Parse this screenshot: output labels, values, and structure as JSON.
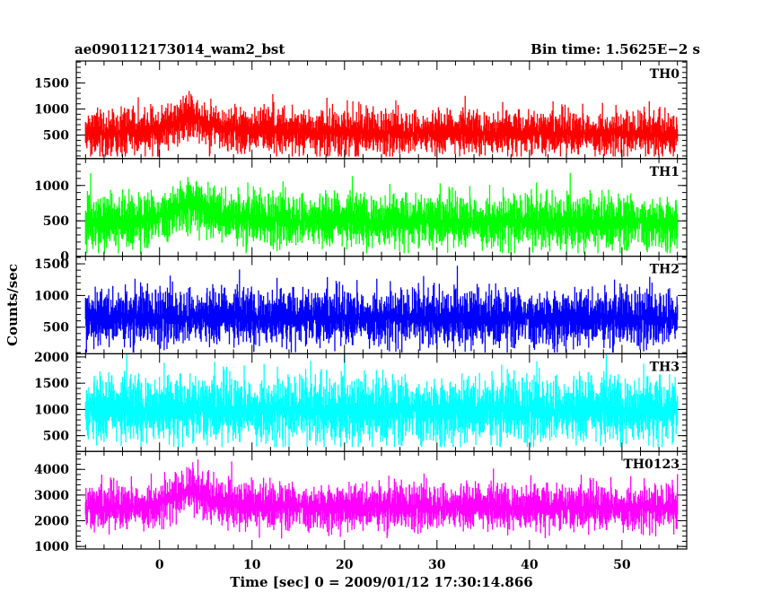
{
  "header": {
    "title": "ae090112173014_wam2_bst",
    "bin_time": "Bin time: 1.5625E−2 s"
  },
  "chart_data": {
    "type": "line",
    "xlabel": "Time [sec] 0 = 2009/01/12 17:30:14.866",
    "ylabel": "Counts/sec",
    "xlim": [
      -9,
      57
    ],
    "x_range": [
      -8,
      56
    ],
    "bin_time": 0.015625,
    "x_ticks": [
      0,
      10,
      20,
      30,
      40,
      50
    ],
    "panels": [
      {
        "name": "TH0",
        "color": "#ff0000",
        "ylim": [
          50,
          1920
        ],
        "y_ticks": [
          500,
          1000,
          1500
        ],
        "profile": [
          {
            "x": -8,
            "mean": 520
          },
          {
            "x": -2,
            "mean": 560
          },
          {
            "x": 0,
            "mean": 600
          },
          {
            "x": 2,
            "mean": 780
          },
          {
            "x": 3.5,
            "mean": 880
          },
          {
            "x": 5,
            "mean": 720
          },
          {
            "x": 8,
            "mean": 600
          },
          {
            "x": 15,
            "mean": 560
          },
          {
            "x": 30,
            "mean": 540
          },
          {
            "x": 45,
            "mean": 540
          },
          {
            "x": 56,
            "mean": 520
          }
        ],
        "noise": 180,
        "max": 1900,
        "min": 90
      },
      {
        "name": "TH1",
        "color": "#00ff00",
        "ylim": [
          0,
          1380
        ],
        "y_ticks": [
          0,
          500,
          1000
        ],
        "profile": [
          {
            "x": -8,
            "mean": 480
          },
          {
            "x": -2,
            "mean": 500
          },
          {
            "x": 0,
            "mean": 560
          },
          {
            "x": 2,
            "mean": 700
          },
          {
            "x": 3.5,
            "mean": 790
          },
          {
            "x": 5,
            "mean": 650
          },
          {
            "x": 8,
            "mean": 540
          },
          {
            "x": 15,
            "mean": 500
          },
          {
            "x": 56,
            "mean": 480
          }
        ],
        "noise": 160,
        "max": 1370,
        "min": 40
      },
      {
        "name": "TH2",
        "color": "#0000ff",
        "ylim": [
          80,
          1620
        ],
        "y_ticks": [
          500,
          1000,
          1500
        ],
        "profile": [
          {
            "x": -8,
            "mean": 650
          },
          {
            "x": 0,
            "mean": 660
          },
          {
            "x": 20,
            "mean": 650
          },
          {
            "x": 40,
            "mean": 650
          },
          {
            "x": 56,
            "mean": 640
          }
        ],
        "noise": 190,
        "max": 1600,
        "min": 100
      },
      {
        "name": "TH3",
        "color": "#00ffff",
        "ylim": [
          200,
          2060
        ],
        "y_ticks": [
          500,
          1000,
          1500,
          2000
        ],
        "profile": [
          {
            "x": -8,
            "mean": 980
          },
          {
            "x": 0,
            "mean": 1000
          },
          {
            "x": 20,
            "mean": 990
          },
          {
            "x": 40,
            "mean": 990
          },
          {
            "x": 56,
            "mean": 980
          }
        ],
        "noise": 270,
        "max": 2050,
        "min": 280
      },
      {
        "name": "TH0123",
        "color": "#ff00ff",
        "ylim": [
          900,
          4700
        ],
        "y_ticks": [
          1000,
          2000,
          3000,
          4000
        ],
        "profile": [
          {
            "x": -8,
            "mean": 2500
          },
          {
            "x": -2,
            "mean": 2550
          },
          {
            "x": 0,
            "mean": 2650
          },
          {
            "x": 2,
            "mean": 3000
          },
          {
            "x": 3.5,
            "mean": 3200
          },
          {
            "x": 5,
            "mean": 2900
          },
          {
            "x": 8,
            "mean": 2650
          },
          {
            "x": 15,
            "mean": 2550
          },
          {
            "x": 56,
            "mean": 2500
          }
        ],
        "noise": 380,
        "max": 4650,
        "min": 950
      }
    ]
  }
}
